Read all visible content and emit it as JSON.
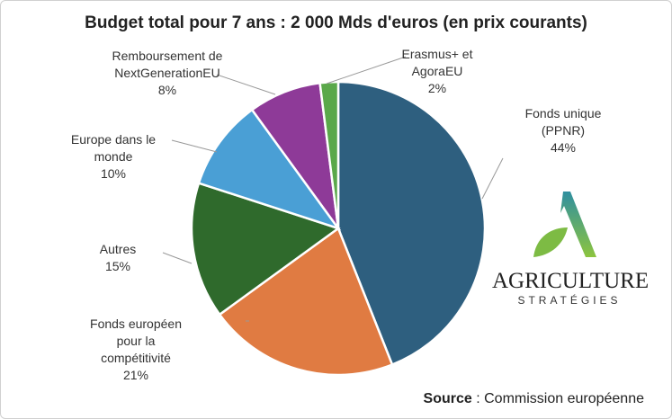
{
  "chart_data": {
    "type": "pie",
    "title": "Budget total pour 7 ans : 2 000 Mds d'euros (en prix courants)",
    "slices": [
      {
        "label": "Fonds unique (PPNR)",
        "lines": [
          "Fonds unique",
          "(PPNR)",
          "44%"
        ],
        "value": 44,
        "color": "#2e5f7f"
      },
      {
        "label": "Fonds européen pour la compétitivité",
        "lines": [
          "Fonds européen",
          "pour la",
          "compétitivité",
          "21%"
        ],
        "value": 21,
        "color": "#e07b42"
      },
      {
        "label": "Autres",
        "lines": [
          "Autres",
          "15%"
        ],
        "value": 15,
        "color": "#2f6a2c"
      },
      {
        "label": "Europe dans le monde",
        "lines": [
          "Europe dans le",
          "monde",
          "10%"
        ],
        "value": 10,
        "color": "#4a9fd5"
      },
      {
        "label": "Remboursement de NextGenerationEU",
        "lines": [
          "Remboursement de",
          "NextGenerationEU",
          "8%"
        ],
        "value": 8,
        "color": "#8e3a98"
      },
      {
        "label": "Erasmus+ et AgoraEU",
        "lines": [
          "Erasmus+ et",
          "AgoraEU",
          "2%"
        ],
        "value": 2,
        "color": "#5aa84a"
      }
    ],
    "legend": "none"
  },
  "source": {
    "prefix": "Source",
    "text": " : Commission européenne"
  },
  "logo": {
    "name": "AGRICULTURE",
    "sub": "STRATÉGIES"
  }
}
